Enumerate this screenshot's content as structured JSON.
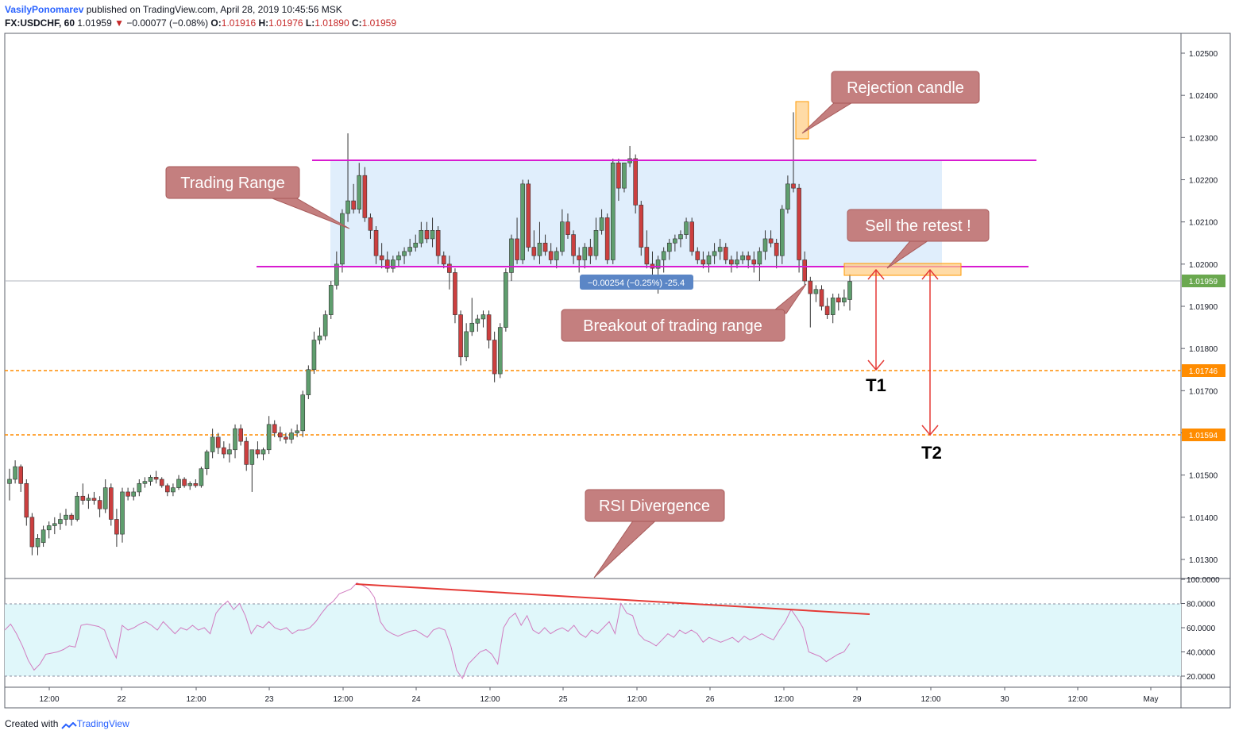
{
  "header": {
    "author": "VasilyPonomarev",
    "published_text": "published on TradingView.com, April 28, 2019 10:45:56 MSK",
    "symbol": "FX:USDCHF, 60",
    "last": "1.01959",
    "change_arrow": "▼",
    "change": "−0.00077 (−0.08%)",
    "o_label": "O:",
    "o_value": "1.01916",
    "h_label": "H:",
    "h_value": "1.01976",
    "l_label": "L:",
    "l_value": "1.01890",
    "c_label": "C:",
    "c_value": "1.01959"
  },
  "footer": {
    "created_with": "Created with",
    "brand": "TradingView"
  },
  "chart_data": {
    "type": "candlestick",
    "symbol": "FX:USDCHF",
    "interval": "60",
    "price_axis": {
      "ylim": [
        1.0125,
        1.0255
      ],
      "ticks": [
        "1.02500",
        "1.02400",
        "1.02300",
        "1.02200",
        "1.02100",
        "1.02000",
        "1.01900",
        "1.01800",
        "1.01700",
        "1.01600",
        "1.01500",
        "1.01400",
        "1.01300"
      ],
      "last_price_label": "1.01959",
      "level_labels": [
        "1.01746",
        "1.01594"
      ]
    },
    "time_axis": {
      "ticks": [
        "12:00",
        "22",
        "12:00",
        "23",
        "12:00",
        "24",
        "12:00",
        "25",
        "12:00",
        "26",
        "12:00",
        "29",
        "12:00",
        "30",
        "12:00",
        "May"
      ]
    },
    "candles": [
      [
        1.0148,
        1.01515,
        1.0144,
        1.0149
      ],
      [
        1.0149,
        1.01535,
        1.0148,
        1.0152
      ],
      [
        1.0152,
        1.01525,
        1.0146,
        1.0148
      ],
      [
        1.0148,
        1.0149,
        1.0138,
        1.014
      ],
      [
        1.014,
        1.0141,
        1.0131,
        1.0133
      ],
      [
        1.0133,
        1.0136,
        1.0131,
        1.0135
      ],
      [
        1.0134,
        1.0138,
        1.0133,
        1.0137
      ],
      [
        1.0137,
        1.0139,
        1.0135,
        1.0138
      ],
      [
        1.0138,
        1.014,
        1.0136,
        1.01385
      ],
      [
        1.01385,
        1.0141,
        1.0137,
        1.01395
      ],
      [
        1.01395,
        1.0142,
        1.0138,
        1.01405
      ],
      [
        1.01405,
        1.0141,
        1.0138,
        1.01395
      ],
      [
        1.01395,
        1.0146,
        1.0139,
        1.0145
      ],
      [
        1.0145,
        1.0148,
        1.0143,
        1.0144
      ],
      [
        1.0144,
        1.01455,
        1.0142,
        1.01445
      ],
      [
        1.01445,
        1.0146,
        1.0143,
        1.0144
      ],
      [
        1.0144,
        1.0145,
        1.014,
        1.0142
      ],
      [
        1.0142,
        1.0149,
        1.0141,
        1.0147
      ],
      [
        1.0147,
        1.0148,
        1.0138,
        1.01395
      ],
      [
        1.01395,
        1.0142,
        1.0133,
        1.0136
      ],
      [
        1.0136,
        1.0147,
        1.0134,
        1.0146
      ],
      [
        1.0146,
        1.0147,
        1.0144,
        1.0145
      ],
      [
        1.0145,
        1.0147,
        1.0144,
        1.0146
      ],
      [
        1.0146,
        1.0149,
        1.0145,
        1.0148
      ],
      [
        1.0148,
        1.01495,
        1.0147,
        1.01485
      ],
      [
        1.01485,
        1.015,
        1.01475,
        1.01495
      ],
      [
        1.01495,
        1.0151,
        1.0148,
        1.0149
      ],
      [
        1.0149,
        1.01495,
        1.0147,
        1.01475
      ],
      [
        1.01475,
        1.0148,
        1.0145,
        1.0146
      ],
      [
        1.0146,
        1.0148,
        1.0145,
        1.0147
      ],
      [
        1.0147,
        1.015,
        1.01465,
        1.0149
      ],
      [
        1.0149,
        1.01495,
        1.0147,
        1.01475
      ],
      [
        1.01475,
        1.01485,
        1.01465,
        1.0148
      ],
      [
        1.0148,
        1.0149,
        1.0147,
        1.01475
      ],
      [
        1.01475,
        1.0152,
        1.0147,
        1.01515
      ],
      [
        1.01515,
        1.0156,
        1.015,
        1.01555
      ],
      [
        1.01555,
        1.0161,
        1.0154,
        1.0159
      ],
      [
        1.0159,
        1.016,
        1.0155,
        1.01565
      ],
      [
        1.01565,
        1.0158,
        1.0154,
        1.0155
      ],
      [
        1.0155,
        1.01575,
        1.0153,
        1.0156
      ],
      [
        1.0156,
        1.0162,
        1.0154,
        1.0161
      ],
      [
        1.0161,
        1.0162,
        1.0157,
        1.0158
      ],
      [
        1.0158,
        1.0159,
        1.0151,
        1.01525
      ],
      [
        1.01525,
        1.01555,
        1.0146,
        1.0156
      ],
      [
        1.0156,
        1.0158,
        1.0154,
        1.0155
      ],
      [
        1.0155,
        1.01565,
        1.01535,
        1.0156
      ],
      [
        1.0156,
        1.0164,
        1.0155,
        1.0162
      ],
      [
        1.0162,
        1.0163,
        1.0159,
        1.016
      ],
      [
        1.016,
        1.01615,
        1.0158,
        1.0159
      ],
      [
        1.0159,
        1.016,
        1.01575,
        1.01585
      ],
      [
        1.01585,
        1.0161,
        1.01575,
        1.016
      ],
      [
        1.016,
        1.0162,
        1.0159,
        1.01605
      ],
      [
        1.01605,
        1.017,
        1.0159,
        1.0169
      ],
      [
        1.0169,
        1.0176,
        1.0168,
        1.0175
      ],
      [
        1.0175,
        1.0184,
        1.0174,
        1.0182
      ],
      [
        1.0182,
        1.0185,
        1.0181,
        1.0183
      ],
      [
        1.0183,
        1.0189,
        1.0182,
        1.0188
      ],
      [
        1.0188,
        1.0196,
        1.0187,
        1.0195
      ],
      [
        1.0195,
        1.0203,
        1.0194,
        1.02
      ],
      [
        1.02,
        1.0213,
        1.0198,
        1.0212
      ],
      [
        1.0212,
        1.0231,
        1.021,
        1.0215
      ],
      [
        1.0215,
        1.0219,
        1.0212,
        1.0213
      ],
      [
        1.0213,
        1.0224,
        1.0212,
        1.0221
      ],
      [
        1.0221,
        1.0223,
        1.021,
        1.0211
      ],
      [
        1.0211,
        1.0212,
        1.0206,
        1.0208
      ],
      [
        1.0208,
        1.0209,
        1.02,
        1.0202
      ],
      [
        1.0202,
        1.0205,
        1.0199,
        1.0201
      ],
      [
        1.0201,
        1.0203,
        1.0198,
        1.0199
      ],
      [
        1.0199,
        1.0202,
        1.0198,
        1.0201
      ],
      [
        1.0201,
        1.0203,
        1.01995,
        1.0202
      ],
      [
        1.0202,
        1.0204,
        1.02,
        1.0203
      ],
      [
        1.0203,
        1.0206,
        1.0202,
        1.0204
      ],
      [
        1.0204,
        1.0207,
        1.0203,
        1.0205
      ],
      [
        1.0205,
        1.021,
        1.0204,
        1.0208
      ],
      [
        1.0208,
        1.021,
        1.0205,
        1.0206
      ],
      [
        1.0206,
        1.0211,
        1.0204,
        1.0208
      ],
      [
        1.0208,
        1.0209,
        1.02,
        1.0202
      ],
      [
        1.0202,
        1.0203,
        1.0199,
        1.02
      ],
      [
        1.02,
        1.0202,
        1.0194,
        1.0198
      ],
      [
        1.0198,
        1.0199,
        1.0186,
        1.0188
      ],
      [
        1.0188,
        1.0189,
        1.0176,
        1.0178
      ],
      [
        1.0178,
        1.0186,
        1.0177,
        1.0184
      ],
      [
        1.0184,
        1.0192,
        1.0183,
        1.0186
      ],
      [
        1.0186,
        1.0188,
        1.0184,
        1.0187
      ],
      [
        1.0187,
        1.0189,
        1.0185,
        1.0188
      ],
      [
        1.0188,
        1.0189,
        1.018,
        1.0182
      ],
      [
        1.0182,
        1.0184,
        1.0172,
        1.0174
      ],
      [
        1.0174,
        1.0186,
        1.0173,
        1.0185
      ],
      [
        1.0185,
        1.0199,
        1.0184,
        1.0198
      ],
      [
        1.0198,
        1.0207,
        1.0196,
        1.0206
      ],
      [
        1.0206,
        1.0211,
        1.02,
        1.0201
      ],
      [
        1.0201,
        1.022,
        1.02,
        1.0219
      ],
      [
        1.0219,
        1.022,
        1.0203,
        1.0204
      ],
      [
        1.0204,
        1.0208,
        1.0201,
        1.0202
      ],
      [
        1.0202,
        1.021,
        1.02,
        1.0205
      ],
      [
        1.0205,
        1.0207,
        1.0202,
        1.0203
      ],
      [
        1.0203,
        1.0205,
        1.02,
        1.0201
      ],
      [
        1.0201,
        1.0204,
        1.0199,
        1.0203
      ],
      [
        1.0203,
        1.0213,
        1.0202,
        1.021
      ],
      [
        1.021,
        1.0212,
        1.0206,
        1.0207
      ],
      [
        1.0207,
        1.0208,
        1.02,
        1.0202
      ],
      [
        1.0202,
        1.0204,
        1.0198,
        1.0201
      ],
      [
        1.0201,
        1.0205,
        1.0199,
        1.0204
      ],
      [
        1.0204,
        1.0206,
        1.02,
        1.0202
      ],
      [
        1.0202,
        1.0211,
        1.0201,
        1.0208
      ],
      [
        1.0208,
        1.0213,
        1.0207,
        1.0211
      ],
      [
        1.0211,
        1.0212,
        1.02,
        1.0201
      ],
      [
        1.0201,
        1.0225,
        1.02,
        1.0224
      ],
      [
        1.0224,
        1.0225,
        1.0215,
        1.0218
      ],
      [
        1.0218,
        1.0224,
        1.0217,
        1.0224
      ],
      [
        1.0224,
        1.0228,
        1.0223,
        1.0225
      ],
      [
        1.0225,
        1.0226,
        1.0212,
        1.0214
      ],
      [
        1.0214,
        1.0215,
        1.0202,
        1.0204
      ],
      [
        1.0204,
        1.0208,
        1.0199,
        1.02
      ],
      [
        1.02,
        1.0203,
        1.0195,
        1.0199
      ],
      [
        1.0199,
        1.0202,
        1.0193,
        1.0201
      ],
      [
        1.0201,
        1.0204,
        1.0198,
        1.0203
      ],
      [
        1.0203,
        1.0206,
        1.0201,
        1.0205
      ],
      [
        1.0205,
        1.0207,
        1.0203,
        1.0206
      ],
      [
        1.0206,
        1.0208,
        1.0204,
        1.0207
      ],
      [
        1.0207,
        1.0211,
        1.0206,
        1.021
      ],
      [
        1.021,
        1.0211,
        1.0202,
        1.0203
      ],
      [
        1.0203,
        1.0204,
        1.02,
        1.0201
      ],
      [
        1.0201,
        1.0203,
        1.0199,
        1.02
      ],
      [
        1.02,
        1.0203,
        1.0198,
        1.0202
      ],
      [
        1.0202,
        1.0205,
        1.02,
        1.0203
      ],
      [
        1.0203,
        1.0206,
        1.0201,
        1.0204
      ],
      [
        1.0204,
        1.0205,
        1.02,
        1.0201
      ],
      [
        1.0201,
        1.0202,
        1.0198,
        1.02
      ],
      [
        1.02,
        1.0203,
        1.0199,
        1.0201
      ],
      [
        1.0201,
        1.0203,
        1.02,
        1.0202
      ],
      [
        1.0202,
        1.0203,
        1.0199,
        1.0201
      ],
      [
        1.0201,
        1.0203,
        1.0198,
        1.02
      ],
      [
        1.02,
        1.0204,
        1.0196,
        1.0203
      ],
      [
        1.0203,
        1.0208,
        1.0201,
        1.0206
      ],
      [
        1.0206,
        1.0208,
        1.0204,
        1.0205
      ],
      [
        1.0205,
        1.0206,
        1.0199,
        1.0202
      ],
      [
        1.0202,
        1.0214,
        1.02,
        1.0213
      ],
      [
        1.0213,
        1.0221,
        1.0212,
        1.0219
      ],
      [
        1.0219,
        1.0236,
        1.0217,
        1.0218
      ],
      [
        1.0218,
        1.0219,
        1.0198,
        1.0201
      ],
      [
        1.0201,
        1.0203,
        1.0195,
        1.0196
      ],
      [
        1.0196,
        1.0197,
        1.0185,
        1.0193
      ],
      [
        1.0193,
        1.0195,
        1.0191,
        1.0194
      ],
      [
        1.0194,
        1.0195,
        1.0189,
        1.019
      ],
      [
        1.019,
        1.0192,
        1.0187,
        1.0188
      ],
      [
        1.0188,
        1.0193,
        1.0186,
        1.0192
      ],
      [
        1.0192,
        1.0193,
        1.0189,
        1.0191
      ],
      [
        1.0191,
        1.0194,
        1.019,
        1.0192
      ],
      [
        1.01916,
        1.01976,
        1.0189,
        1.01959
      ]
    ],
    "trading_range": {
      "top": 1.02245,
      "bottom": 1.0199
    },
    "levels": [
      {
        "label": "1.01746",
        "value": 1.01746,
        "color": "#ff8c00"
      },
      {
        "label": "1.01594",
        "value": 1.01594,
        "color": "#ff8c00"
      }
    ],
    "annotations": [
      {
        "text": "Trading Range"
      },
      {
        "text": "Rejection candle"
      },
      {
        "text": "Sell the retest !"
      },
      {
        "text": "Breakout of trading range"
      },
      {
        "text": "RSI Divergence"
      },
      {
        "text": "−0.00254 (−0.25%) -25.4"
      }
    ],
    "targets": [
      "T1",
      "T2"
    ],
    "rsi": {
      "ticks": [
        "100.0000",
        "80.0000",
        "60.0000",
        "40.0000",
        "20.0000"
      ],
      "upper_band": 80,
      "lower_band": 20,
      "values": [
        58,
        63,
        55,
        45,
        33,
        25,
        30,
        38,
        39,
        40,
        42,
        45,
        44,
        62,
        63,
        62,
        61,
        58,
        45,
        35,
        62,
        58,
        60,
        63,
        65,
        62,
        58,
        65,
        60,
        55,
        60,
        58,
        62,
        58,
        60,
        55,
        72,
        78,
        82,
        75,
        80,
        70,
        55,
        62,
        60,
        65,
        60,
        58,
        60,
        55,
        58,
        58,
        60,
        65,
        72,
        78,
        82,
        88,
        90,
        92,
        97,
        95,
        92,
        85,
        65,
        58,
        55,
        53,
        55,
        57,
        58,
        55,
        52,
        58,
        60,
        58,
        45,
        25,
        18,
        30,
        35,
        40,
        42,
        38,
        30,
        60,
        68,
        72,
        62,
        70,
        58,
        55,
        60,
        55,
        58,
        60,
        57,
        62,
        55,
        52,
        58,
        55,
        60,
        65,
        55,
        80,
        72,
        70,
        55,
        50,
        48,
        45,
        50,
        55,
        52,
        58,
        55,
        58,
        55,
        48,
        52,
        50,
        48,
        50,
        52,
        48,
        53,
        50,
        52,
        55,
        52,
        50,
        58,
        65,
        75,
        68,
        60,
        40,
        38,
        36,
        32,
        35,
        38,
        40,
        47
      ]
    },
    "rsi_divergence_line": {
      "from": 97,
      "to": 71
    }
  }
}
